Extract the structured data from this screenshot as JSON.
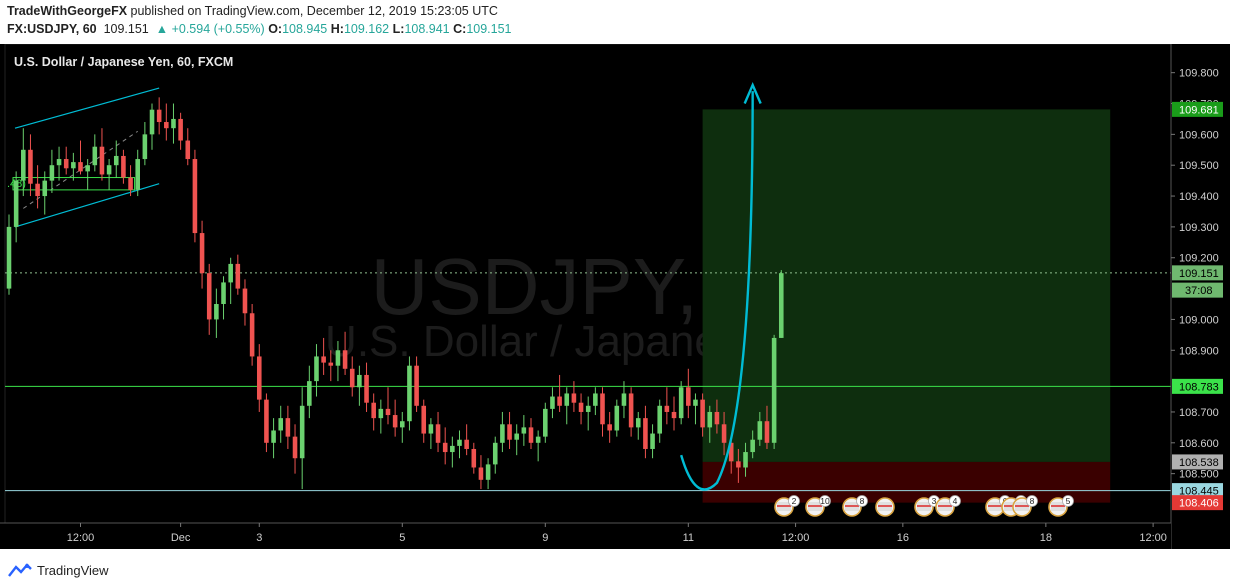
{
  "header": {
    "author": "TradeWithGeorgeFX",
    "published_text": "published on TradingView.com, December 12, 2019 15:23:05 UTC",
    "symbol": "FX:USDJPY, 60",
    "last": "109.151",
    "change_arrow": "▲",
    "change": "+0.594 (+0.55%)",
    "open_label": "O:",
    "open": "108.945",
    "high_label": "H:",
    "high": "109.162",
    "low_label": "L:",
    "low": "108.941",
    "close_label": "C:",
    "close": "109.151"
  },
  "footer": {
    "brand": "TradingView"
  },
  "colors": {
    "background": "#000000",
    "up": "#6bd16f",
    "down": "#ef5350",
    "channel": "#00bcd4",
    "level_line": "#3be24a",
    "target_zone": "#0e2e0e",
    "stop_zone": "#3a0000",
    "arrow": "#00bcd4"
  },
  "chart_data": {
    "type": "candlestick",
    "title": "U.S. Dollar / Japanese Yen, 60, FXCM",
    "watermark_symbol": "USDJPY, 60",
    "watermark_name": "U.S. Dollar / Japanese Yen",
    "y_axis": {
      "ticks": [
        "109.800",
        "109.700",
        "109.600",
        "109.500",
        "109.400",
        "109.300",
        "109.200",
        "109.000",
        "108.900",
        "108.700",
        "108.600",
        "108.500"
      ],
      "range": [
        108.34,
        109.88
      ]
    },
    "x_axis": {
      "ticks": [
        "12:00",
        "Dec",
        "3",
        "5",
        "9",
        "11",
        "12:00",
        "16",
        "18",
        "12:00"
      ],
      "tick_index": [
        10,
        24,
        35,
        55,
        75,
        95,
        110,
        125,
        145,
        160
      ]
    },
    "price_labels": [
      {
        "text": "109.681",
        "value": 109.681,
        "style": "target"
      },
      {
        "text": "109.151",
        "value": 109.151,
        "style": "last"
      },
      {
        "text": "37:08",
        "value": 109.095,
        "style": "countdown"
      },
      {
        "text": "108.783",
        "value": 108.783,
        "style": "level"
      },
      {
        "text": "108.538",
        "value": 108.538,
        "style": "entry"
      },
      {
        "text": "108.445",
        "value": 108.445,
        "style": "level2"
      },
      {
        "text": "108.406",
        "value": 108.406,
        "style": "stop"
      }
    ],
    "horizontal_levels": [
      109.151,
      108.783,
      108.445
    ],
    "position": {
      "entry": 108.538,
      "target": 109.681,
      "stop": 108.406,
      "x_start_index": 97,
      "x_end_index": 154
    },
    "channel_label": ".48)",
    "ohlc": [
      [
        109.1,
        109.34,
        109.08,
        109.3
      ],
      [
        109.3,
        109.48,
        109.25,
        109.45
      ],
      [
        109.45,
        109.62,
        109.4,
        109.55
      ],
      [
        109.55,
        109.6,
        109.4,
        109.44
      ],
      [
        109.44,
        109.5,
        109.36,
        109.4
      ],
      [
        109.4,
        109.48,
        109.34,
        109.45
      ],
      [
        109.45,
        109.55,
        109.41,
        109.5
      ],
      [
        109.5,
        109.56,
        109.45,
        109.52
      ],
      [
        109.52,
        109.56,
        109.47,
        109.49
      ],
      [
        109.49,
        109.54,
        109.45,
        109.51
      ],
      [
        109.51,
        109.58,
        109.47,
        109.48
      ],
      [
        109.48,
        109.52,
        109.42,
        109.5
      ],
      [
        109.5,
        109.6,
        109.48,
        109.56
      ],
      [
        109.56,
        109.62,
        109.45,
        109.47
      ],
      [
        109.47,
        109.52,
        109.42,
        109.5
      ],
      [
        109.5,
        109.58,
        109.46,
        109.53
      ],
      [
        109.53,
        109.55,
        109.44,
        109.46
      ],
      [
        109.46,
        109.5,
        109.4,
        109.42
      ],
      [
        109.42,
        109.55,
        109.4,
        109.52
      ],
      [
        109.52,
        109.64,
        109.5,
        109.6
      ],
      [
        109.6,
        109.7,
        109.55,
        109.68
      ],
      [
        109.68,
        109.72,
        109.6,
        109.64
      ],
      [
        109.64,
        109.7,
        109.58,
        109.62
      ],
      [
        109.62,
        109.7,
        109.57,
        109.65
      ],
      [
        109.65,
        109.67,
        109.55,
        109.58
      ],
      [
        109.58,
        109.62,
        109.5,
        109.52
      ],
      [
        109.52,
        109.55,
        109.25,
        109.28
      ],
      [
        109.28,
        109.32,
        109.1,
        109.15
      ],
      [
        109.15,
        109.18,
        108.95,
        109.0
      ],
      [
        109.0,
        109.1,
        108.94,
        109.05
      ],
      [
        109.05,
        109.14,
        109.0,
        109.12
      ],
      [
        109.12,
        109.2,
        109.05,
        109.18
      ],
      [
        109.18,
        109.21,
        109.08,
        109.1
      ],
      [
        109.1,
        109.13,
        108.98,
        109.02
      ],
      [
        109.02,
        109.05,
        108.85,
        108.88
      ],
      [
        108.88,
        108.92,
        108.7,
        108.74
      ],
      [
        108.74,
        108.76,
        108.57,
        108.6
      ],
      [
        108.6,
        108.68,
        108.55,
        108.64
      ],
      [
        108.64,
        108.72,
        108.6,
        108.68
      ],
      [
        108.68,
        108.72,
        108.58,
        108.62
      ],
      [
        108.62,
        108.66,
        108.5,
        108.55
      ],
      [
        108.55,
        108.78,
        108.45,
        108.72
      ],
      [
        108.72,
        108.85,
        108.68,
        108.8
      ],
      [
        108.8,
        108.92,
        108.75,
        108.88
      ],
      [
        108.88,
        108.94,
        108.82,
        108.86
      ],
      [
        108.86,
        108.9,
        108.8,
        108.85
      ],
      [
        108.85,
        108.93,
        108.8,
        108.9
      ],
      [
        108.9,
        108.96,
        108.82,
        108.84
      ],
      [
        108.84,
        108.88,
        108.75,
        108.78
      ],
      [
        108.78,
        108.85,
        108.72,
        108.82
      ],
      [
        108.82,
        108.86,
        108.7,
        108.73
      ],
      [
        108.73,
        108.76,
        108.64,
        108.68
      ],
      [
        108.68,
        108.74,
        108.63,
        108.71
      ],
      [
        108.71,
        108.78,
        108.66,
        108.69
      ],
      [
        108.69,
        108.74,
        108.62,
        108.65
      ],
      [
        108.65,
        108.7,
        108.6,
        108.67
      ],
      [
        108.67,
        108.88,
        108.64,
        108.85
      ],
      [
        108.85,
        108.88,
        108.7,
        108.72
      ],
      [
        108.72,
        108.74,
        108.6,
        108.63
      ],
      [
        108.63,
        108.68,
        108.58,
        108.66
      ],
      [
        108.66,
        108.7,
        108.57,
        108.6
      ],
      [
        108.6,
        108.65,
        108.53,
        108.57
      ],
      [
        108.57,
        108.62,
        108.52,
        108.59
      ],
      [
        108.59,
        108.64,
        108.55,
        108.61
      ],
      [
        108.61,
        108.66,
        108.56,
        108.58
      ],
      [
        108.58,
        108.6,
        108.5,
        108.52
      ],
      [
        108.52,
        108.56,
        108.45,
        108.48
      ],
      [
        108.48,
        108.55,
        108.45,
        108.53
      ],
      [
        108.53,
        108.62,
        108.5,
        108.6
      ],
      [
        108.6,
        108.7,
        108.57,
        108.66
      ],
      [
        108.66,
        108.7,
        108.58,
        108.61
      ],
      [
        108.61,
        108.66,
        108.56,
        108.63
      ],
      [
        108.63,
        108.69,
        108.59,
        108.65
      ],
      [
        108.65,
        108.68,
        108.58,
        108.6
      ],
      [
        108.6,
        108.64,
        108.54,
        108.62
      ],
      [
        108.62,
        108.73,
        108.6,
        108.71
      ],
      [
        108.71,
        108.78,
        108.68,
        108.75
      ],
      [
        108.75,
        108.82,
        108.7,
        108.72
      ],
      [
        108.72,
        108.78,
        108.66,
        108.76
      ],
      [
        108.76,
        108.8,
        108.7,
        108.73
      ],
      [
        108.73,
        108.76,
        108.66,
        108.7
      ],
      [
        108.7,
        108.75,
        108.64,
        108.72
      ],
      [
        108.72,
        108.78,
        108.69,
        108.76
      ],
      [
        108.76,
        108.78,
        108.62,
        108.66
      ],
      [
        108.66,
        108.7,
        108.6,
        108.64
      ],
      [
        108.64,
        108.74,
        108.62,
        108.72
      ],
      [
        108.72,
        108.8,
        108.68,
        108.76
      ],
      [
        108.76,
        108.78,
        108.62,
        108.65
      ],
      [
        108.65,
        108.7,
        108.61,
        108.68
      ],
      [
        108.68,
        108.72,
        108.55,
        108.58
      ],
      [
        108.58,
        108.66,
        108.55,
        108.63
      ],
      [
        108.63,
        108.74,
        108.6,
        108.72
      ],
      [
        108.72,
        108.78,
        108.66,
        108.7
      ],
      [
        108.7,
        108.75,
        108.64,
        108.68
      ],
      [
        108.68,
        108.8,
        108.66,
        108.78
      ],
      [
        108.78,
        108.84,
        108.68,
        108.72
      ],
      [
        108.72,
        108.76,
        108.66,
        108.74
      ],
      [
        108.74,
        108.76,
        108.62,
        108.65
      ],
      [
        108.65,
        108.72,
        108.6,
        108.7
      ],
      [
        108.7,
        108.74,
        108.63,
        108.66
      ],
      [
        108.66,
        108.7,
        108.56,
        108.6
      ],
      [
        108.6,
        108.62,
        108.5,
        108.54
      ],
      [
        108.54,
        108.58,
        108.47,
        108.52
      ],
      [
        108.52,
        108.6,
        108.49,
        108.57
      ],
      [
        108.57,
        108.64,
        108.55,
        108.61
      ],
      [
        108.61,
        108.7,
        108.59,
        108.67
      ],
      [
        108.67,
        108.72,
        108.58,
        108.6
      ],
      [
        108.6,
        108.95,
        108.58,
        108.94
      ],
      [
        108.94,
        109.16,
        108.94,
        109.15
      ]
    ]
  }
}
